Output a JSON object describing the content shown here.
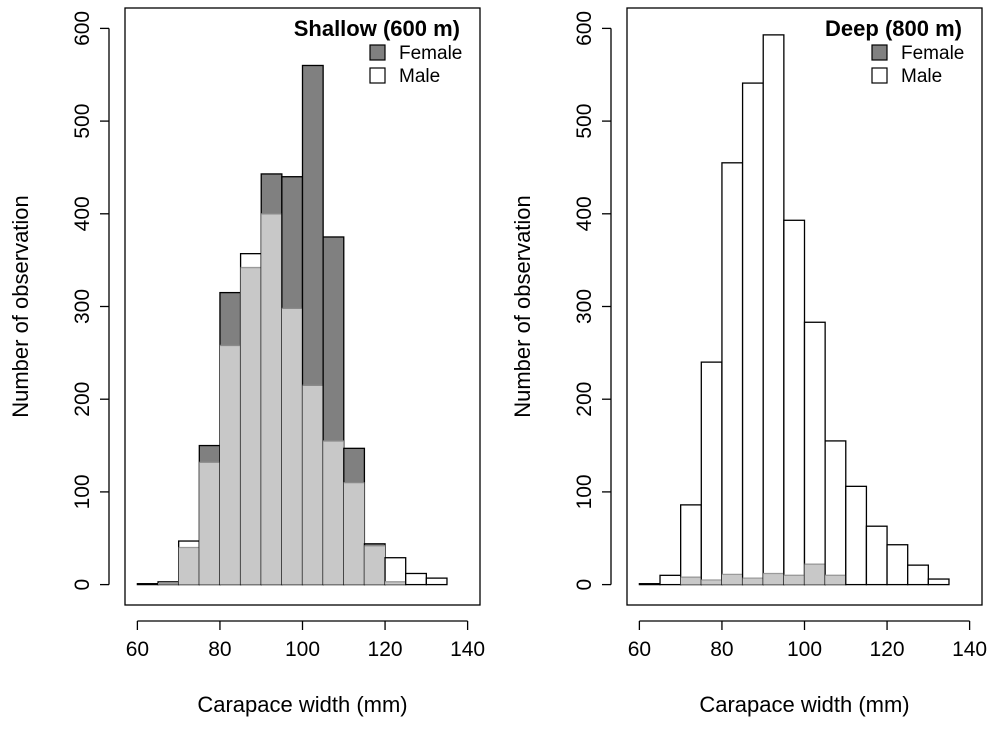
{
  "colors": {
    "female": "#808080",
    "male": "#ffffff",
    "overlap": "#c8c8c8",
    "stroke": "#000000"
  },
  "chart_data": [
    {
      "type": "bar",
      "title": "Shallow (600 m)",
      "xlabel": "Carapace width (mm)",
      "ylabel": "Number of observation",
      "xlim": [
        57,
        143
      ],
      "ylim": [
        -22,
        622
      ],
      "xticks": [
        60,
        80,
        100,
        120,
        140
      ],
      "yticks": [
        0,
        100,
        200,
        300,
        400,
        500,
        600
      ],
      "legend_position": "top-right",
      "bin_width": 5,
      "bin_starts": [
        60,
        65,
        70,
        75,
        80,
        85,
        90,
        95,
        100,
        105,
        110,
        115,
        120,
        125,
        130
      ],
      "series": [
        {
          "name": "Female",
          "values": [
            0,
            1,
            40,
            150,
            315,
            342,
            443,
            440,
            560,
            375,
            147,
            44,
            3,
            0,
            0
          ]
        },
        {
          "name": "Male",
          "values": [
            1,
            3,
            47,
            132,
            258,
            357,
            400,
            298,
            215,
            155,
            110,
            42,
            29,
            12,
            7
          ]
        }
      ]
    },
    {
      "type": "bar",
      "title": "Deep (800 m)",
      "xlabel": "Carapace width (mm)",
      "ylabel": "Number of observation",
      "xlim": [
        57,
        143
      ],
      "ylim": [
        -22,
        622
      ],
      "xticks": [
        60,
        80,
        100,
        120,
        140
      ],
      "yticks": [
        0,
        100,
        200,
        300,
        400,
        500,
        600
      ],
      "legend_position": "top-right",
      "bin_width": 5,
      "bin_starts": [
        60,
        65,
        70,
        75,
        80,
        85,
        90,
        95,
        100,
        105,
        110,
        115,
        120,
        125,
        130
      ],
      "series": [
        {
          "name": "Female",
          "values": [
            0,
            0,
            8,
            5,
            11,
            7,
            12,
            10,
            22,
            10,
            0,
            0,
            0,
            0,
            0
          ]
        },
        {
          "name": "Male",
          "values": [
            1,
            10,
            86,
            240,
            455,
            541,
            593,
            393,
            283,
            155,
            106,
            63,
            43,
            21,
            6
          ]
        }
      ]
    }
  ]
}
